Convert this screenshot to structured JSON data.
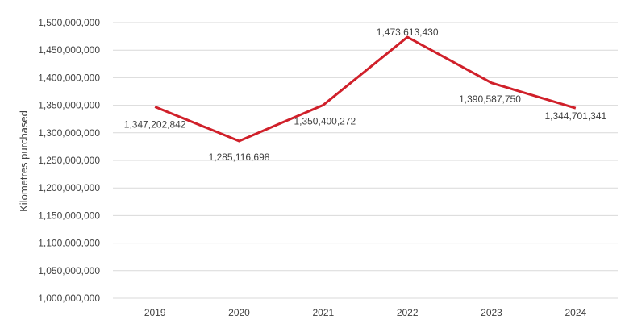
{
  "chart_data": {
    "type": "line",
    "title": "",
    "xlabel": "",
    "ylabel": "Kilometres purchased",
    "categories": [
      "2019",
      "2020",
      "2021",
      "2022",
      "2023",
      "2024"
    ],
    "series": [
      {
        "values": [
          1347202842,
          1285116698,
          1350400272,
          1473613430,
          1390587750,
          1344701341
        ],
        "data_labels": [
          "1,347,202,842",
          "1,285,116,698",
          "1,350,400,272",
          "1,473,613,430",
          "1,390,587,750",
          "1,344,701,341"
        ],
        "color": "#d0202a"
      }
    ],
    "ylim": [
      1000000000,
      1500000000
    ],
    "y_ticks": [
      1000000000,
      1050000000,
      1100000000,
      1150000000,
      1200000000,
      1250000000,
      1300000000,
      1350000000,
      1400000000,
      1450000000,
      1500000000
    ],
    "y_tick_labels": [
      "1,000,000,000",
      "1,050,000,000",
      "1,100,000,000",
      "1,150,000,000",
      "1,200,000,000",
      "1,250,000,000",
      "1,300,000,000",
      "1,350,000,000",
      "1,400,000,000",
      "1,450,000,000",
      "1,500,000,000"
    ],
    "grid": true,
    "legend": "none",
    "gridline_color": "#d9d9d9"
  }
}
